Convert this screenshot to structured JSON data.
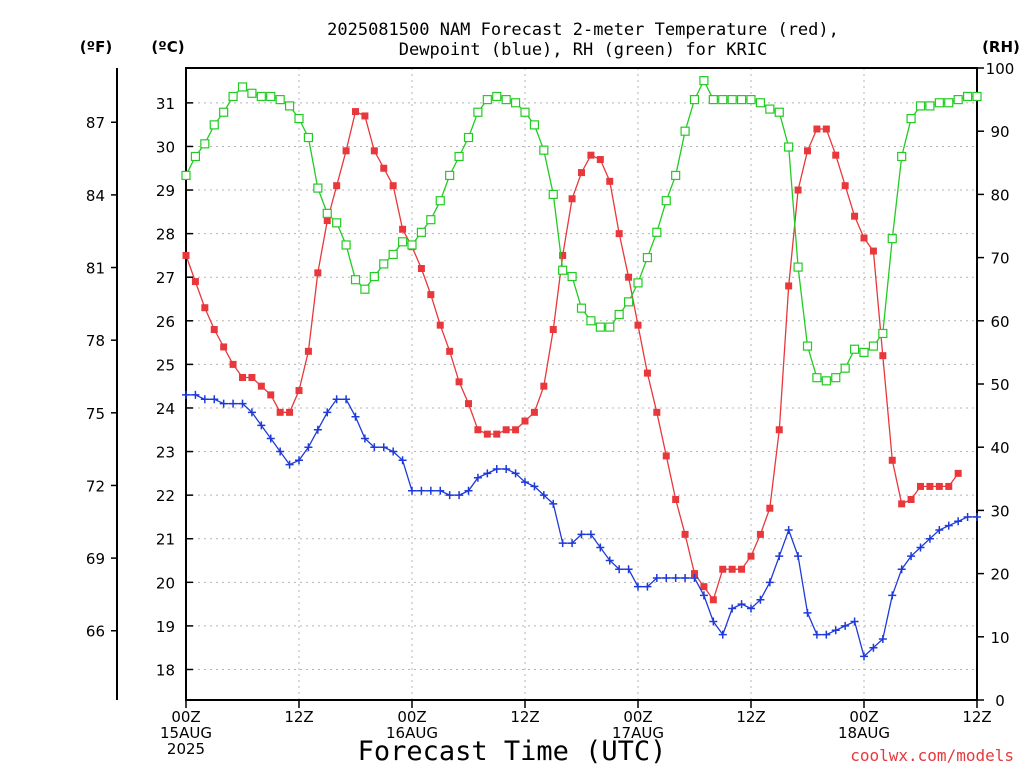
{
  "chart_data": {
    "type": "line",
    "title": "2025081500 NAM Forecast 2-meter Temperature (red),",
    "subtitle": "Dewpoint (blue), RH (green) for KRIC",
    "xlabel": "Forecast Time (UTC)",
    "watermark": "coolwx.com/models",
    "units": {
      "fahrenheit": "(ºF)",
      "celsius": "(ºC)",
      "rh": "(RH)"
    },
    "x_unit": "hours since 2025-08-15 00Z",
    "xlim": [
      0,
      84
    ],
    "x_ticks": [
      {
        "x": 0,
        "lines": [
          "00Z",
          "15AUG",
          "2025"
        ]
      },
      {
        "x": 12,
        "lines": [
          "12Z"
        ]
      },
      {
        "x": 24,
        "lines": [
          "00Z",
          "16AUG"
        ]
      },
      {
        "x": 36,
        "lines": [
          "12Z"
        ]
      },
      {
        "x": 48,
        "lines": [
          "00Z",
          "17AUG"
        ]
      },
      {
        "x": 60,
        "lines": [
          "12Z"
        ]
      },
      {
        "x": 72,
        "lines": [
          "00Z",
          "18AUG"
        ]
      },
      {
        "x": 84,
        "lines": [
          "12Z"
        ]
      }
    ],
    "celsius_axis": {
      "ylim": [
        17.3,
        31.8
      ],
      "ticks": [
        "18",
        "19",
        "20",
        "21",
        "22",
        "23",
        "24",
        "25",
        "26",
        "27",
        "28",
        "29",
        "30",
        "31"
      ]
    },
    "fahrenheit_axis": {
      "ticks": [
        "66",
        "69",
        "72",
        "75",
        "78",
        "81",
        "84",
        "87"
      ]
    },
    "rh_axis": {
      "ylim": [
        0,
        100
      ],
      "ticks": [
        "0",
        "10",
        "20",
        "30",
        "40",
        "50",
        "60",
        "70",
        "80",
        "90",
        "100"
      ]
    },
    "grid": true,
    "series": [
      {
        "name": "Temperature",
        "axis": "celsius",
        "color": "#e8383c",
        "marker": "filled-square",
        "points": [
          [
            0,
            27.5
          ],
          [
            1,
            26.9
          ],
          [
            2,
            26.3
          ],
          [
            3,
            25.8
          ],
          [
            4,
            25.4
          ],
          [
            5,
            25.0
          ],
          [
            6,
            24.7
          ],
          [
            7,
            24.7
          ],
          [
            8,
            24.5
          ],
          [
            9,
            24.3
          ],
          [
            10,
            23.9
          ],
          [
            11,
            23.9
          ],
          [
            12,
            24.4
          ],
          [
            13,
            25.3
          ],
          [
            14,
            27.1
          ],
          [
            15,
            28.3
          ],
          [
            16,
            29.1
          ],
          [
            17,
            29.9
          ],
          [
            18,
            30.8
          ],
          [
            19,
            30.7
          ],
          [
            20,
            29.9
          ],
          [
            21,
            29.5
          ],
          [
            22,
            29.1
          ],
          [
            23,
            28.1
          ],
          [
            24,
            27.7
          ],
          [
            25,
            27.2
          ],
          [
            26,
            26.6
          ],
          [
            27,
            25.9
          ],
          [
            28,
            25.3
          ],
          [
            29,
            24.6
          ],
          [
            30,
            24.1
          ],
          [
            31,
            23.5
          ],
          [
            32,
            23.4
          ],
          [
            33,
            23.4
          ],
          [
            34,
            23.5
          ],
          [
            35,
            23.5
          ],
          [
            36,
            23.7
          ],
          [
            37,
            23.9
          ],
          [
            38,
            24.5
          ],
          [
            39,
            25.8
          ],
          [
            40,
            27.5
          ],
          [
            41,
            28.8
          ],
          [
            42,
            29.4
          ],
          [
            43,
            29.8
          ],
          [
            44,
            29.7
          ],
          [
            45,
            29.2
          ],
          [
            46,
            28.0
          ],
          [
            47,
            27.0
          ],
          [
            48,
            25.9
          ],
          [
            49,
            24.8
          ],
          [
            50,
            23.9
          ],
          [
            51,
            22.9
          ],
          [
            52,
            21.9
          ],
          [
            53,
            21.1
          ],
          [
            54,
            20.2
          ],
          [
            55,
            19.9
          ],
          [
            56,
            19.6
          ],
          [
            57,
            20.3
          ],
          [
            58,
            20.3
          ],
          [
            59,
            20.3
          ],
          [
            60,
            20.6
          ],
          [
            61,
            21.1
          ],
          [
            62,
            21.7
          ],
          [
            63,
            23.5
          ],
          [
            64,
            26.8
          ],
          [
            65,
            29.0
          ],
          [
            66,
            29.9
          ],
          [
            67,
            30.4
          ],
          [
            68,
            30.4
          ],
          [
            69,
            29.8
          ],
          [
            70,
            29.1
          ],
          [
            71,
            28.4
          ],
          [
            72,
            27.9
          ],
          [
            73,
            27.6
          ],
          [
            74,
            25.2
          ],
          [
            75,
            22.8
          ],
          [
            76,
            21.8
          ],
          [
            77,
            21.9
          ],
          [
            78,
            22.2
          ],
          [
            79,
            22.2
          ],
          [
            80,
            22.2
          ],
          [
            81,
            22.2
          ],
          [
            82,
            22.5
          ]
        ]
      },
      {
        "name": "Dewpoint",
        "axis": "celsius",
        "color": "#1e3ad8",
        "marker": "plus",
        "points": [
          [
            0,
            24.3
          ],
          [
            1,
            24.3
          ],
          [
            2,
            24.2
          ],
          [
            3,
            24.2
          ],
          [
            4,
            24.1
          ],
          [
            5,
            24.1
          ],
          [
            6,
            24.1
          ],
          [
            7,
            23.9
          ],
          [
            8,
            23.6
          ],
          [
            9,
            23.3
          ],
          [
            10,
            23.0
          ],
          [
            11,
            22.7
          ],
          [
            12,
            22.8
          ],
          [
            13,
            23.1
          ],
          [
            14,
            23.5
          ],
          [
            15,
            23.9
          ],
          [
            16,
            24.2
          ],
          [
            17,
            24.2
          ],
          [
            18,
            23.8
          ],
          [
            19,
            23.3
          ],
          [
            20,
            23.1
          ],
          [
            21,
            23.1
          ],
          [
            22,
            23.0
          ],
          [
            23,
            22.8
          ],
          [
            24,
            22.1
          ],
          [
            25,
            22.1
          ],
          [
            26,
            22.1
          ],
          [
            27,
            22.1
          ],
          [
            28,
            22.0
          ],
          [
            29,
            22.0
          ],
          [
            30,
            22.1
          ],
          [
            31,
            22.4
          ],
          [
            32,
            22.5
          ],
          [
            33,
            22.6
          ],
          [
            34,
            22.6
          ],
          [
            35,
            22.5
          ],
          [
            36,
            22.3
          ],
          [
            37,
            22.2
          ],
          [
            38,
            22.0
          ],
          [
            39,
            21.8
          ],
          [
            40,
            20.9
          ],
          [
            41,
            20.9
          ],
          [
            42,
            21.1
          ],
          [
            43,
            21.1
          ],
          [
            44,
            20.8
          ],
          [
            45,
            20.5
          ],
          [
            46,
            20.3
          ],
          [
            47,
            20.3
          ],
          [
            48,
            19.9
          ],
          [
            49,
            19.9
          ],
          [
            50,
            20.1
          ],
          [
            51,
            20.1
          ],
          [
            52,
            20.1
          ],
          [
            53,
            20.1
          ],
          [
            54,
            20.1
          ],
          [
            55,
            19.7
          ],
          [
            56,
            19.1
          ],
          [
            57,
            18.8
          ],
          [
            58,
            19.4
          ],
          [
            59,
            19.5
          ],
          [
            60,
            19.4
          ],
          [
            61,
            19.6
          ],
          [
            62,
            20.0
          ],
          [
            63,
            20.6
          ],
          [
            64,
            21.2
          ],
          [
            65,
            20.6
          ],
          [
            66,
            19.3
          ],
          [
            67,
            18.8
          ],
          [
            68,
            18.8
          ],
          [
            69,
            18.9
          ],
          [
            70,
            19.0
          ],
          [
            71,
            19.1
          ],
          [
            72,
            18.3
          ],
          [
            73,
            18.5
          ],
          [
            74,
            18.7
          ],
          [
            75,
            19.7
          ],
          [
            76,
            20.3
          ],
          [
            77,
            20.6
          ],
          [
            78,
            20.8
          ],
          [
            79,
            21.0
          ],
          [
            80,
            21.2
          ],
          [
            81,
            21.3
          ],
          [
            82,
            21.4
          ],
          [
            83,
            21.5
          ],
          [
            84,
            21.5
          ]
        ]
      },
      {
        "name": "RH",
        "axis": "rh",
        "color": "#22cc22",
        "marker": "open-square",
        "points": [
          [
            0,
            83
          ],
          [
            1,
            86
          ],
          [
            2,
            88
          ],
          [
            3,
            91
          ],
          [
            4,
            93
          ],
          [
            5,
            95.5
          ],
          [
            6,
            97
          ],
          [
            7,
            96
          ],
          [
            8,
            95.5
          ],
          [
            9,
            95.5
          ],
          [
            10,
            95
          ],
          [
            11,
            94
          ],
          [
            12,
            92
          ],
          [
            13,
            89
          ],
          [
            14,
            81
          ],
          [
            15,
            77
          ],
          [
            16,
            75.5
          ],
          [
            17,
            72
          ],
          [
            18,
            66.5
          ],
          [
            19,
            65
          ],
          [
            20,
            67
          ],
          [
            21,
            69
          ],
          [
            22,
            70.5
          ],
          [
            23,
            72.5
          ],
          [
            24,
            72
          ],
          [
            25,
            74
          ],
          [
            26,
            76
          ],
          [
            27,
            79
          ],
          [
            28,
            83
          ],
          [
            29,
            86
          ],
          [
            30,
            89
          ],
          [
            31,
            93
          ],
          [
            32,
            95
          ],
          [
            33,
            95.5
          ],
          [
            34,
            95
          ],
          [
            35,
            94.5
          ],
          [
            36,
            93
          ],
          [
            37,
            91
          ],
          [
            38,
            87
          ],
          [
            39,
            80
          ],
          [
            40,
            68
          ],
          [
            41,
            67
          ],
          [
            42,
            62
          ],
          [
            43,
            60
          ],
          [
            44,
            59
          ],
          [
            45,
            59
          ],
          [
            46,
            61
          ],
          [
            47,
            63
          ],
          [
            48,
            66
          ],
          [
            49,
            70
          ],
          [
            50,
            74
          ],
          [
            51,
            79
          ],
          [
            52,
            83
          ],
          [
            53,
            90
          ],
          [
            54,
            95
          ],
          [
            55,
            98
          ],
          [
            56,
            95
          ],
          [
            57,
            95
          ],
          [
            58,
            95
          ],
          [
            59,
            95
          ],
          [
            60,
            95
          ],
          [
            61,
            94.5
          ],
          [
            62,
            93.5
          ],
          [
            63,
            93
          ],
          [
            64,
            87.5
          ],
          [
            65,
            68.5
          ],
          [
            66,
            56
          ],
          [
            67,
            51
          ],
          [
            68,
            50.5
          ],
          [
            69,
            51
          ],
          [
            70,
            52.5
          ],
          [
            71,
            55.5
          ],
          [
            72,
            55
          ],
          [
            73,
            56
          ],
          [
            74,
            58
          ],
          [
            75,
            73
          ],
          [
            76,
            86
          ],
          [
            77,
            92
          ],
          [
            78,
            94
          ],
          [
            79,
            94
          ],
          [
            80,
            94.5
          ],
          [
            81,
            94.5
          ],
          [
            82,
            95
          ],
          [
            83,
            95.5
          ],
          [
            84,
            95.5
          ]
        ]
      }
    ]
  }
}
